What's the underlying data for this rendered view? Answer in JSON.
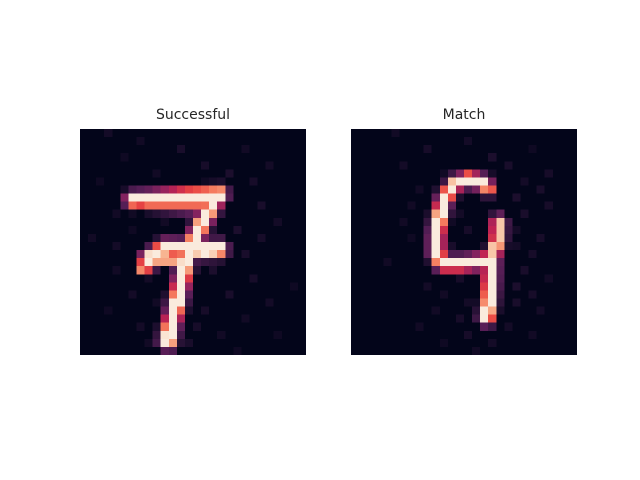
{
  "chart_data": [
    {
      "type": "heatmap",
      "title": "Successful",
      "grid": false,
      "colormap": "rocket",
      "value_range": [
        0,
        1
      ],
      "rows": 28,
      "cols": 28,
      "strokes": [
        {
          "points": [
            [
              6.5,
              8.8
            ],
            [
              13.0,
              8.3
            ],
            [
              15.8,
              8.2
            ],
            [
              17.3,
              8.1
            ]
          ],
          "width": 0.9,
          "intensity": 1.0
        },
        {
          "points": [
            [
              8.8,
              9.3
            ],
            [
              12.6,
              9.6
            ],
            [
              14.5,
              9.7
            ]
          ],
          "width": 0.7,
          "intensity": 0.8
        },
        {
          "points": [
            [
              17.0,
              8.3
            ],
            [
              15.2,
              11.5
            ],
            [
              14.2,
              13.6
            ],
            [
              13.2,
              15.8
            ],
            [
              12.7,
              18.2
            ],
            [
              12.0,
              21.5
            ],
            [
              11.2,
              24.6
            ],
            [
              10.9,
              26.3
            ]
          ],
          "width": 0.95,
          "intensity": 1.0
        },
        {
          "points": [
            [
              8.3,
              16.3
            ],
            [
              10.6,
              14.7
            ],
            [
              12.8,
              14.8
            ],
            [
              15.4,
              15.0
            ],
            [
              17.2,
              14.9
            ]
          ],
          "width": 0.95,
          "intensity": 1.0
        },
        {
          "points": [
            [
              7.8,
              17.3
            ],
            [
              10.2,
              16.2
            ],
            [
              12.6,
              16.4
            ]
          ],
          "width": 0.6,
          "intensity": 0.9
        }
      ],
      "noise_cells": [
        [
          0,
          3,
          0.07
        ],
        [
          1,
          7,
          0.06
        ],
        [
          2,
          12,
          0.09
        ],
        [
          2,
          20,
          0.06
        ],
        [
          3,
          5,
          0.05
        ],
        [
          4,
          15,
          0.08
        ],
        [
          4,
          23,
          0.07
        ],
        [
          5,
          9,
          0.06
        ],
        [
          5,
          18,
          0.1
        ],
        [
          6,
          2,
          0.05
        ],
        [
          6,
          21,
          0.08
        ],
        [
          7,
          13,
          0.07
        ],
        [
          9,
          22,
          0.09
        ],
        [
          10,
          4,
          0.06
        ],
        [
          10,
          17,
          0.08
        ],
        [
          11,
          10,
          0.06
        ],
        [
          11,
          24,
          0.07
        ],
        [
          12,
          6,
          0.05
        ],
        [
          12,
          19,
          0.1
        ],
        [
          13,
          1,
          0.06
        ],
        [
          13,
          22,
          0.08
        ],
        [
          14,
          4,
          0.07
        ],
        [
          15,
          20,
          0.09
        ],
        [
          16,
          11,
          0.08
        ],
        [
          17,
          4,
          0.06
        ],
        [
          17,
          16,
          0.1
        ],
        [
          18,
          8,
          0.07
        ],
        [
          18,
          21,
          0.08
        ],
        [
          19,
          13,
          0.06
        ],
        [
          19,
          26,
          0.05
        ],
        [
          20,
          6,
          0.07
        ],
        [
          20,
          18,
          0.09
        ],
        [
          21,
          9,
          0.06
        ],
        [
          21,
          23,
          0.07
        ],
        [
          22,
          3,
          0.05
        ],
        [
          22,
          15,
          0.08
        ],
        [
          23,
          12,
          0.1
        ],
        [
          23,
          20,
          0.06
        ],
        [
          24,
          7,
          0.07
        ],
        [
          24,
          14,
          0.08
        ],
        [
          25,
          17,
          0.06
        ],
        [
          25,
          24,
          0.05
        ],
        [
          26,
          8,
          0.06
        ],
        [
          26,
          13,
          0.09
        ],
        [
          27,
          10,
          0.07
        ],
        [
          27,
          19,
          0.05
        ]
      ]
    },
    {
      "type": "heatmap",
      "title": "Match",
      "grid": false,
      "colormap": "rocket",
      "value_range": [
        0,
        1
      ],
      "rows": 28,
      "cols": 28,
      "strokes": [
        {
          "points": [
            [
              16.5,
              6.7
            ],
            [
              14.6,
              6.2
            ],
            [
              13.0,
              6.7
            ],
            [
              11.6,
              8.5
            ],
            [
              11.0,
              10.8
            ],
            [
              10.6,
              13.0
            ],
            [
              10.6,
              15.4
            ],
            [
              11.3,
              16.7
            ]
          ],
          "width": 0.85,
          "intensity": 1.0
        },
        {
          "points": [
            [
              16.5,
              6.7
            ],
            [
              17.0,
              7.5
            ]
          ],
          "width": 0.7,
          "intensity": 0.9
        },
        {
          "points": [
            [
              11.3,
              16.7
            ],
            [
              13.5,
              16.7
            ],
            [
              15.5,
              16.5
            ],
            [
              17.4,
              16.2
            ]
          ],
          "width": 0.85,
          "intensity": 1.0
        },
        {
          "points": [
            [
              17.4,
              16.2
            ],
            [
              18.2,
              13.8
            ],
            [
              18.3,
              11.5
            ]
          ],
          "width": 0.8,
          "intensity": 0.95
        },
        {
          "points": [
            [
              17.4,
              16.2
            ],
            [
              17.3,
              19.0
            ],
            [
              17.1,
              21.5
            ],
            [
              16.8,
              23.4
            ]
          ],
          "width": 0.85,
          "intensity": 1.0
        }
      ],
      "noise_cells": [
        [
          0,
          5,
          0.06
        ],
        [
          1,
          14,
          0.07
        ],
        [
          2,
          9,
          0.08
        ],
        [
          2,
          22,
          0.05
        ],
        [
          3,
          17,
          0.1
        ],
        [
          4,
          6,
          0.07
        ],
        [
          4,
          19,
          0.09
        ],
        [
          5,
          11,
          0.06
        ],
        [
          5,
          24,
          0.08
        ],
        [
          6,
          21,
          0.07
        ],
        [
          7,
          8,
          0.06
        ],
        [
          7,
          23,
          0.09
        ],
        [
          8,
          20,
          0.1
        ],
        [
          9,
          7,
          0.06
        ],
        [
          9,
          24,
          0.08
        ],
        [
          10,
          13,
          0.07
        ],
        [
          10,
          21,
          0.09
        ],
        [
          11,
          6,
          0.06
        ],
        [
          12,
          14,
          0.08
        ],
        [
          12,
          20,
          0.07
        ],
        [
          13,
          7,
          0.05
        ],
        [
          13,
          23,
          0.08
        ],
        [
          14,
          12,
          0.09
        ],
        [
          14,
          20,
          0.07
        ],
        [
          15,
          22,
          0.08
        ],
        [
          16,
          4,
          0.06
        ],
        [
          17,
          11,
          0.07
        ],
        [
          17,
          21,
          0.09
        ],
        [
          18,
          13,
          0.08
        ],
        [
          18,
          24,
          0.06
        ],
        [
          19,
          9,
          0.07
        ],
        [
          19,
          20,
          0.1
        ],
        [
          20,
          11,
          0.06
        ],
        [
          20,
          22,
          0.08
        ],
        [
          21,
          14,
          0.07
        ],
        [
          21,
          20,
          0.09
        ],
        [
          22,
          10,
          0.06
        ],
        [
          22,
          23,
          0.07
        ],
        [
          23,
          13,
          0.08
        ],
        [
          24,
          8,
          0.06
        ],
        [
          24,
          19,
          0.07
        ],
        [
          25,
          14,
          0.08
        ],
        [
          25,
          22,
          0.06
        ],
        [
          26,
          11,
          0.05
        ],
        [
          26,
          17,
          0.07
        ],
        [
          27,
          15,
          0.06
        ]
      ]
    }
  ]
}
